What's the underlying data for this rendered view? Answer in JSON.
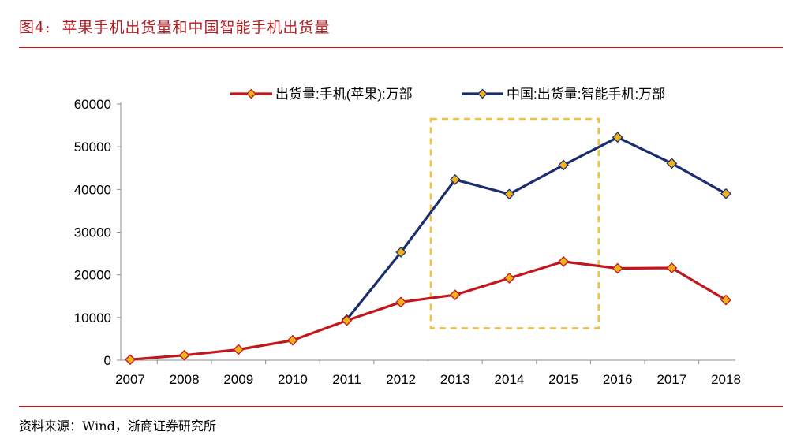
{
  "figure": {
    "number": "图4:",
    "title": "苹果手机出货量和中国智能手机出货量"
  },
  "source": "资料来源：Wind，浙商证券研究所",
  "colors": {
    "accent": "#b01d23",
    "apple_series": "#c0161c",
    "china_series": "#1a2e6e",
    "marker_fill": "#f2b21b",
    "highlight_box": "#f0c040"
  },
  "chart_data": {
    "type": "line",
    "x": [
      "2007",
      "2008",
      "2009",
      "2010",
      "2011",
      "2012",
      "2013",
      "2014",
      "2015",
      "2016",
      "2017",
      "2018"
    ],
    "ylim": [
      0,
      60000
    ],
    "yticks": [
      "0",
      "10000",
      "20000",
      "30000",
      "40000",
      "50000",
      "60000"
    ],
    "grid": false,
    "legend_position": "top",
    "series": [
      {
        "name": "出货量:手机(苹果):万部",
        "x": [
          "2007",
          "2008",
          "2009",
          "2010",
          "2011",
          "2012",
          "2013",
          "2014",
          "2015",
          "2016",
          "2017",
          "2018"
        ],
        "values": [
          140,
          1160,
          2500,
          4660,
          9300,
          13600,
          15300,
          19200,
          23100,
          21500,
          21600,
          14100
        ]
      },
      {
        "name": "中国:出货量:智能手机:万部",
        "x": [
          "2011",
          "2012",
          "2013",
          "2014",
          "2015",
          "2016",
          "2017",
          "2018"
        ],
        "values": [
          9500,
          25300,
          42300,
          38900,
          45700,
          52200,
          46100,
          39000
        ]
      }
    ],
    "highlight_range": [
      "2012",
      "2015"
    ]
  }
}
